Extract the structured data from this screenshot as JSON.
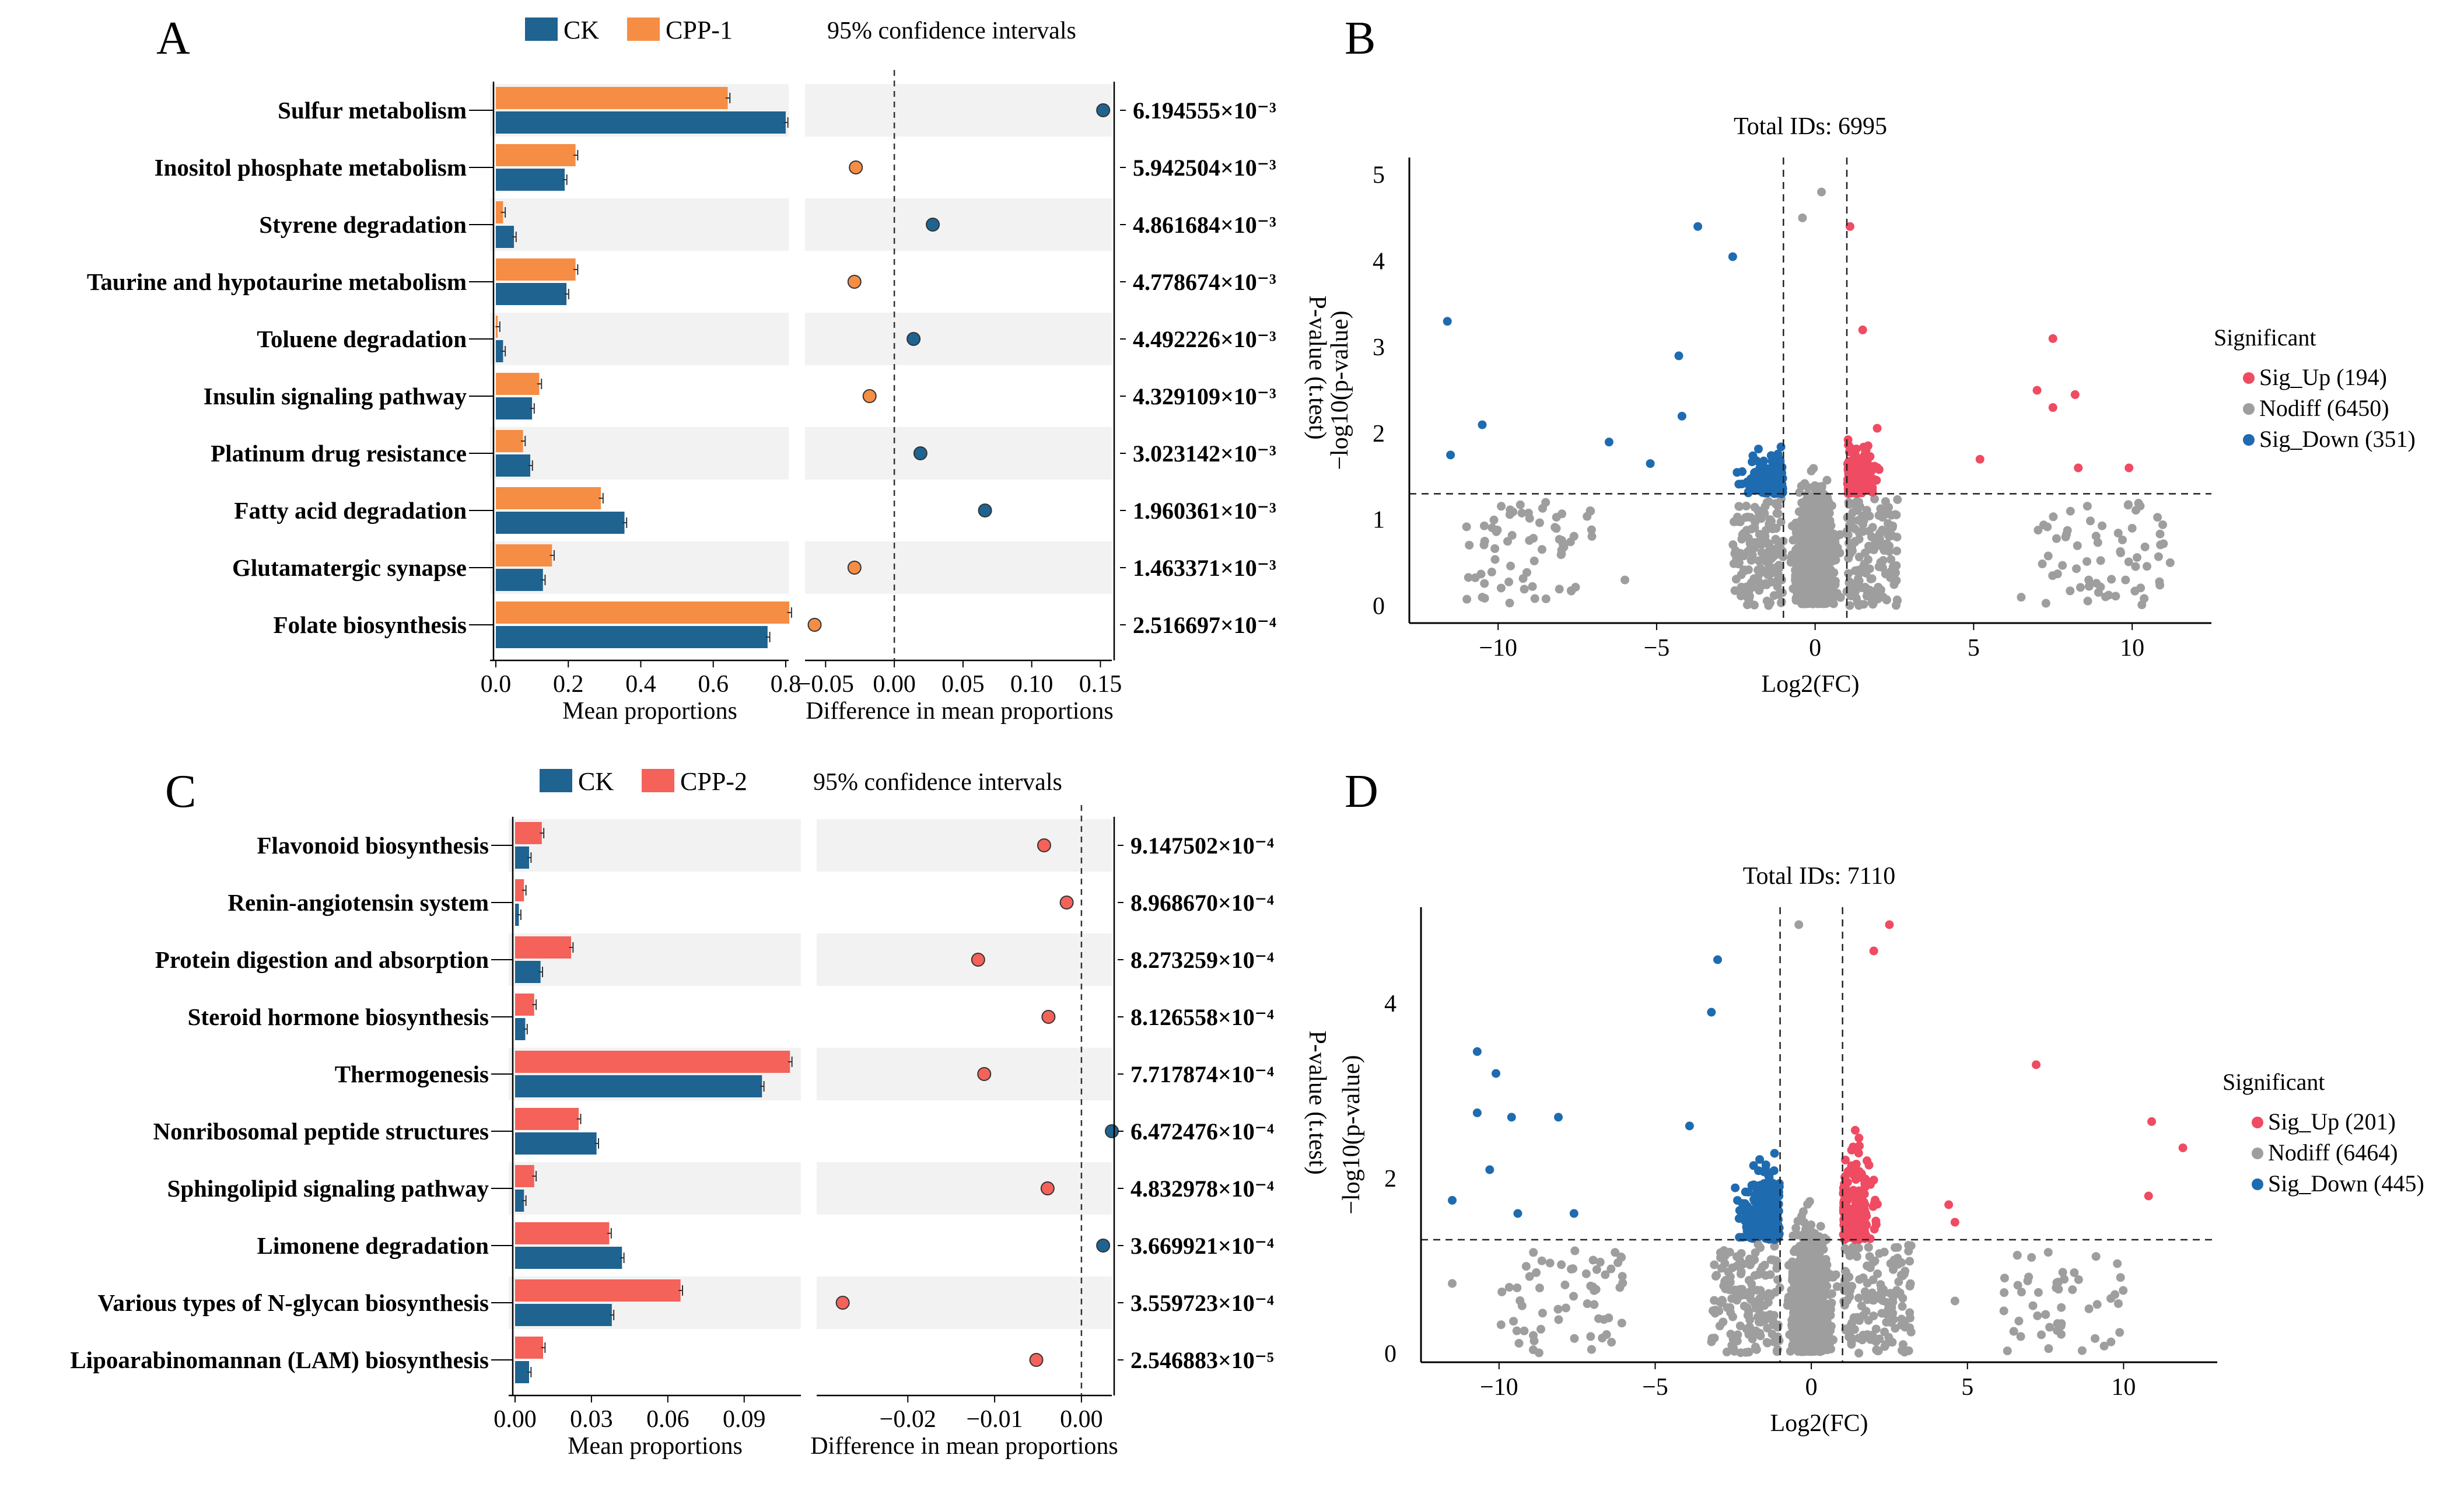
{
  "figure": {
    "panel_letters": [
      "A",
      "B",
      "C",
      "D"
    ]
  },
  "colors": {
    "ck": "#1f6391",
    "cpp1": "#f68d45",
    "cpp2": "#f4625a",
    "sig_up": "#ef4b62",
    "nodiff": "#9e9e9e",
    "sig_down": "#1f6bb0",
    "band": "#f2f2f2"
  },
  "chart_data": [
    {
      "panel": "A",
      "type": "bar",
      "legend": [
        "CK",
        "CPP-1"
      ],
      "ci_title": "95% confidence intervals",
      "xlabel_bar": "Mean proportions",
      "xlabel_ci": "Difference in mean proportions",
      "ylabel_right": "P-value (t.test)",
      "bar_ticks": [
        "0.0",
        "0.2",
        "0.4",
        "0.6",
        "0.8"
      ],
      "bar_tick_values": [
        0,
        0.2,
        0.4,
        0.6,
        0.8
      ],
      "bar_xlim": [
        0,
        0.85
      ],
      "ci_ticks": [
        "−0.05",
        "0.00",
        "0.05",
        "0.10",
        "0.15"
      ],
      "ci_tick_values": [
        -0.05,
        0,
        0.05,
        0.1,
        0.15
      ],
      "ci_xlim": [
        -0.065,
        0.16
      ],
      "categories": [
        "Sulfur metabolism",
        "Inositol phosphate metabolism",
        "Styrene degradation",
        "Taurine and hypotaurine metabolism",
        "Toluene degradation",
        "Insulin signaling pathway",
        "Platinum drug resistance",
        "Fatty acid degradation",
        "Glutamatergic synapse",
        "Folate biosynthesis"
      ],
      "series": [
        {
          "name": "CPP-1",
          "values": [
            0.64,
            0.22,
            0.02,
            0.22,
            0.005,
            0.12,
            0.075,
            0.29,
            0.155,
            0.81
          ]
        },
        {
          "name": "CK",
          "values": [
            0.8,
            0.19,
            0.05,
            0.195,
            0.02,
            0.1,
            0.095,
            0.355,
            0.13,
            0.75
          ]
        }
      ],
      "differences": [
        0.152,
        -0.028,
        0.028,
        -0.029,
        0.014,
        -0.018,
        0.019,
        0.066,
        -0.029,
        -0.058
      ],
      "pvalues": [
        "6.194555×10⁻³",
        "5.942504×10⁻³",
        "4.861684×10⁻³",
        "4.778674×10⁻³",
        "4.492226×10⁻³",
        "4.329109×10⁻³",
        "3.023142×10⁻³",
        "1.960361×10⁻³",
        "1.463371×10⁻³",
        "2.516697×10⁻⁴"
      ]
    },
    {
      "panel": "C",
      "type": "bar",
      "legend": [
        "CK",
        "CPP-2"
      ],
      "ci_title": "95% confidence intervals",
      "xlabel_bar": "Mean proportions",
      "xlabel_ci": "Difference in mean proportions",
      "ylabel_right": "P-value (t.test)",
      "bar_ticks": [
        "0.00",
        "0.03",
        "0.06",
        "0.09"
      ],
      "bar_tick_values": [
        0,
        0.03,
        0.06,
        0.09
      ],
      "bar_xlim": [
        0,
        0.11
      ],
      "ci_ticks": [
        "−0.02",
        "−0.01",
        "0.00"
      ],
      "ci_tick_values": [
        -0.02,
        -0.01,
        0
      ],
      "ci_xlim": [
        -0.0305,
        0.0035
      ],
      "categories": [
        "Flavonoid biosynthesis",
        "Renin-angiotensin system",
        "Protein digestion and absorption",
        "Steroid hormone biosynthesis",
        "Thermogenesis",
        "Nonribosomal peptide structures",
        "Sphingolipid signaling pathway",
        "Limonene degradation",
        "Various types of N-glycan biosynthesis",
        "Lipoarabinomannan (LAM) biosynthesis"
      ],
      "series": [
        {
          "name": "CPP-2",
          "values": [
            0.0105,
            0.0035,
            0.022,
            0.0075,
            0.108,
            0.025,
            0.0075,
            0.037,
            0.065,
            0.011
          ]
        },
        {
          "name": "CK",
          "values": [
            0.0055,
            0.0015,
            0.01,
            0.004,
            0.097,
            0.032,
            0.0035,
            0.042,
            0.038,
            0.0055
          ]
        }
      ],
      "differences": [
        -0.0043,
        -0.0017,
        -0.0119,
        -0.0038,
        -0.0112,
        0.0035,
        -0.0039,
        0.0025,
        -0.0275,
        -0.0052
      ],
      "pvalues": [
        "9.147502×10⁻⁴",
        "8.968670×10⁻⁴",
        "8.273259×10⁻⁴",
        "8.126558×10⁻⁴",
        "7.717874×10⁻⁴",
        "6.472476×10⁻⁴",
        "4.832978×10⁻⁴",
        "3.669921×10⁻⁴",
        "3.559723×10⁻⁴",
        "2.546883×10⁻⁵"
      ]
    },
    {
      "panel": "B",
      "type": "scatter",
      "title": "Total IDs: 6995",
      "xlabel": "Log2(FC)",
      "ylabel": "−log10(p-value)",
      "xlim": [
        -12.8,
        12.5
      ],
      "ylim": [
        -0.2,
        5.2
      ],
      "xticks": [
        -10,
        -5,
        0,
        5,
        10
      ],
      "xtick_labels": [
        "−10",
        "−5",
        "0",
        "5",
        "10"
      ],
      "yticks": [
        0,
        1,
        2,
        3,
        4,
        5
      ],
      "ytick_labels": [
        "0",
        "1",
        "2",
        "3",
        "4",
        "5"
      ],
      "fc_thresholds": [
        -1,
        1
      ],
      "p_threshold": 1.3,
      "legend_title": "Significant",
      "legend": [
        "Sig_Up (194)",
        "Nodiff (6450)",
        "Sig_Down (351)"
      ],
      "up_outliers": [
        [
          7.5,
          3.1
        ],
        [
          7.0,
          2.5
        ],
        [
          8.2,
          2.45
        ],
        [
          7.5,
          2.3
        ],
        [
          8.3,
          1.6
        ],
        [
          9.9,
          1.6
        ],
        [
          5.2,
          1.7
        ],
        [
          1.1,
          4.4
        ],
        [
          1.5,
          3.2
        ]
      ],
      "down_outliers": [
        [
          -11.6,
          3.3
        ],
        [
          -10.5,
          2.1
        ],
        [
          -11.5,
          1.75
        ],
        [
          -6.5,
          1.9
        ],
        [
          -5.2,
          1.65
        ],
        [
          -4.2,
          2.2
        ],
        [
          -4.3,
          2.9
        ],
        [
          -3.7,
          4.4
        ],
        [
          -2.6,
          4.05
        ]
      ],
      "nodiff_outliers": [
        [
          0.2,
          4.8
        ],
        [
          -0.4,
          4.5
        ],
        [
          -10.5,
          0.1
        ],
        [
          -8.5,
          1.2
        ],
        [
          -8.0,
          0.6
        ],
        [
          10.0,
          0.9
        ],
        [
          11.2,
          0.5
        ],
        [
          -6.0,
          0.3
        ],
        [
          6.5,
          0.1
        ]
      ]
    },
    {
      "panel": "D",
      "type": "scatter",
      "title": "Total IDs: 7110",
      "xlabel": "Log2(FC)",
      "ylabel": "−log10(p-value)",
      "xlim": [
        -12.5,
        13.0
      ],
      "ylim": [
        -0.1,
        5.1
      ],
      "xticks": [
        -10,
        -5,
        0,
        5,
        10
      ],
      "xtick_labels": [
        "−10",
        "−5",
        "0",
        "5",
        "10"
      ],
      "yticks": [
        0,
        2,
        4
      ],
      "ytick_labels": [
        "0",
        "2",
        "4"
      ],
      "fc_thresholds": [
        -1,
        1
      ],
      "p_threshold": 1.3,
      "legend_title": "Significant",
      "legend": [
        "Sig_Up (201)",
        "Nodiff (6464)",
        "Sig_Down (445)"
      ],
      "up_outliers": [
        [
          7.2,
          3.3
        ],
        [
          10.9,
          2.65
        ],
        [
          11.9,
          2.35
        ],
        [
          10.8,
          1.8
        ],
        [
          4.4,
          1.7
        ],
        [
          4.6,
          1.5
        ],
        [
          2.5,
          4.9
        ],
        [
          2.0,
          4.6
        ]
      ],
      "down_outliers": [
        [
          -10.7,
          3.45
        ],
        [
          -10.1,
          3.2
        ],
        [
          -10.7,
          2.75
        ],
        [
          -9.6,
          2.7
        ],
        [
          -8.1,
          2.7
        ],
        [
          -10.3,
          2.1
        ],
        [
          -11.5,
          1.75
        ],
        [
          -9.4,
          1.6
        ],
        [
          -7.6,
          1.6
        ],
        [
          -3.9,
          2.6
        ],
        [
          -3.0,
          4.5
        ],
        [
          -3.2,
          3.9
        ]
      ],
      "nodiff_outliers": [
        [
          -11.5,
          0.8
        ],
        [
          -6.6,
          0.9
        ],
        [
          4.6,
          0.6
        ],
        [
          -0.4,
          4.9
        ],
        [
          3.0,
          0.3
        ],
        [
          0.3,
          0.1
        ]
      ]
    }
  ]
}
